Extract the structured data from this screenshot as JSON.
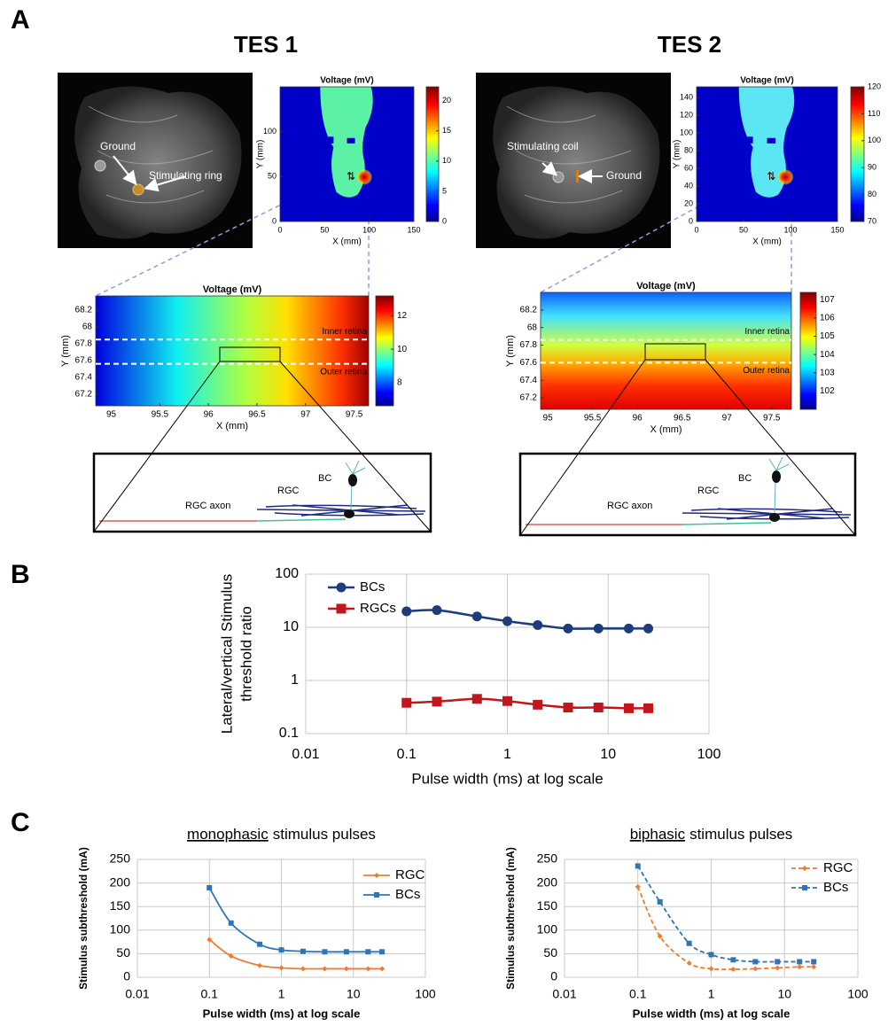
{
  "panel_labels": [
    "A",
    "B",
    "C"
  ],
  "headings": [
    "TES 1",
    "TES 2"
  ],
  "anatomy": [
    {
      "labels": [
        "Ground",
        "Stimulating ring"
      ]
    },
    {
      "labels": [
        "Stimulating coil",
        "Ground"
      ]
    }
  ],
  "cells": [
    {
      "labels": [
        "BC",
        "RGC",
        "RGC axon"
      ]
    },
    {
      "labels": [
        "BC",
        "RGC",
        "RGC axon"
      ]
    }
  ],
  "chart_data": [
    {
      "type": "heatmap",
      "title": "Voltage (mV)",
      "xlabel": "X (mm)",
      "ylabel": "Y (mm)",
      "xlim": [
        0,
        150
      ],
      "xticks": [
        0,
        50,
        100,
        150
      ],
      "ylim": [
        0,
        150
      ],
      "yticks": [
        0,
        50,
        100
      ],
      "clim": [
        0,
        22.3
      ],
      "cticks": [
        0,
        5,
        10,
        15,
        20
      ]
    },
    {
      "type": "heatmap",
      "title": "Voltage (mV)",
      "xlabel": "X (mm)",
      "ylabel": "Y (mm)",
      "xlim": [
        0,
        150
      ],
      "xticks": [
        0,
        50,
        100,
        150
      ],
      "ylim": [
        0,
        152
      ],
      "yticks": [
        0,
        20,
        40,
        60,
        80,
        100,
        120,
        140
      ],
      "clim": [
        70,
        120
      ],
      "cticks": [
        70,
        80,
        90,
        100,
        110,
        120
      ]
    },
    {
      "type": "heatmap",
      "title": "Voltage (mV)",
      "xlabel": "X (mm)",
      "ylabel": "Y (mm)",
      "xlim": [
        94.84,
        97.65
      ],
      "xticks": [
        95,
        95.5,
        96,
        96.5,
        97,
        97.5
      ],
      "ylim": [
        67.06,
        68.37
      ],
      "yticks": [
        67.2,
        67.4,
        67.6,
        67.8,
        68,
        68.2
      ],
      "clim": [
        6.6,
        13.2
      ],
      "cticks": [
        8,
        10,
        12
      ],
      "annotations": [
        "Inner retina",
        "Outer retina"
      ],
      "hlines": [
        67.85,
        67.56
      ]
    },
    {
      "type": "heatmap",
      "title": "Voltage (mV)",
      "xlabel": "X (mm)",
      "ylabel": "Y (mm)",
      "xlim": [
        94.92,
        97.72
      ],
      "xticks": [
        95,
        95.5,
        96,
        96.5,
        97,
        97.5
      ],
      "ylim": [
        67.07,
        68.4
      ],
      "yticks": [
        67.2,
        67.4,
        67.6,
        67.8,
        68,
        68.2
      ],
      "clim": [
        101,
        107.4
      ],
      "cticks": [
        102,
        103,
        104,
        105,
        106,
        107
      ],
      "annotations": [
        "Inner retina",
        "Outer retina"
      ],
      "hlines": [
        67.86,
        67.6
      ]
    },
    {
      "type": "line",
      "xlabel": "Pulse width (ms) at log scale",
      "ylabel": [
        "Lateral/vertical Stimulus",
        "threshold ratio"
      ],
      "xlog": true,
      "ylog": true,
      "grid": true,
      "legend": "top-left",
      "xlim": [
        0.01,
        100
      ],
      "xticks": [
        0.01,
        0.1,
        1,
        10,
        100
      ],
      "ylim": [
        0.1,
        100
      ],
      "yticks": [
        0.1,
        1,
        10,
        100
      ],
      "x": [
        0.1,
        0.2,
        0.5,
        1,
        2,
        4,
        8,
        16,
        25
      ],
      "series": [
        {
          "name": "BCs",
          "color": "#1f3c7a",
          "marker": "circle",
          "values": [
            20,
            21,
            16,
            13,
            11,
            9.5,
            9.5,
            9.5,
            9.5
          ]
        },
        {
          "name": "RGCs",
          "color": "#c0171c",
          "marker": "square",
          "values": [
            0.38,
            0.4,
            0.45,
            0.41,
            0.35,
            0.31,
            0.31,
            0.3,
            0.3
          ]
        }
      ]
    },
    {
      "type": "line",
      "title": [
        "monophasic",
        "stimulus pulses"
      ],
      "xlabel": "Pulse width (ms) at log scale",
      "ylabel": "Stimulus subthreshold (mA)",
      "xlog": true,
      "grid": true,
      "legend": "top-right",
      "xlim": [
        0.01,
        100
      ],
      "xticks": [
        0.01,
        0.1,
        1,
        10,
        100
      ],
      "ylim": [
        0,
        250
      ],
      "yticks": [
        0,
        50,
        100,
        150,
        200,
        250
      ],
      "x": [
        0.1,
        0.2,
        0.5,
        1,
        2,
        4,
        8,
        16,
        25
      ],
      "series": [
        {
          "name": "RGC",
          "color": "#ed7d31",
          "marker": "diamond",
          "values": [
            80,
            45,
            25,
            20,
            18,
            18,
            18,
            18,
            18
          ]
        },
        {
          "name": "BCs",
          "color": "#2e75b6",
          "marker": "square",
          "values": [
            190,
            115,
            70,
            58,
            55,
            54,
            54,
            54,
            54
          ]
        }
      ]
    },
    {
      "type": "line",
      "title": [
        "biphasic",
        "stimulus pulses"
      ],
      "xlabel": "Pulse width (ms) at log scale",
      "ylabel": "Stimulus subthreshold (mA)",
      "xlog": true,
      "grid": true,
      "legend": "top-right",
      "dashed": true,
      "xlim": [
        0.01,
        100
      ],
      "xticks": [
        0.01,
        0.1,
        1,
        10,
        100
      ],
      "ylim": [
        0,
        250
      ],
      "yticks": [
        0,
        50,
        100,
        150,
        200,
        250
      ],
      "x": [
        0.1,
        0.2,
        0.5,
        1,
        2,
        4,
        8,
        16,
        25
      ],
      "series": [
        {
          "name": "RGC",
          "color": "#ed7d31",
          "marker": "diamond",
          "values": [
            192,
            87,
            30,
            18,
            17,
            18,
            20,
            22,
            22
          ]
        },
        {
          "name": "BCs",
          "color": "#2e75b6",
          "marker": "square",
          "values": [
            236,
            160,
            72,
            48,
            37,
            33,
            33,
            33,
            33
          ]
        }
      ]
    }
  ]
}
